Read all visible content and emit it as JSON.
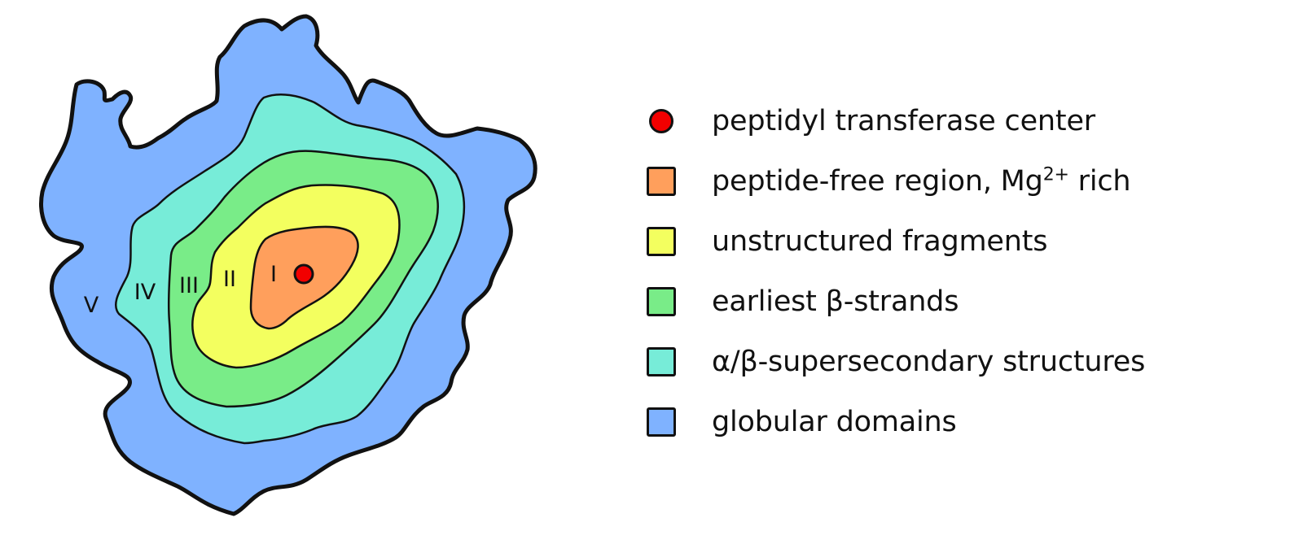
{
  "zones": [
    {
      "numeral": "V",
      "color": "#7fb2ff"
    },
    {
      "numeral": "IV",
      "color": "#77ecd8"
    },
    {
      "numeral": "III",
      "color": "#79ec88"
    },
    {
      "numeral": "II",
      "color": "#f3ff5f"
    },
    {
      "numeral": "I",
      "color": "#ff9f5c"
    }
  ],
  "center_marker_color": "#f20000",
  "legend": {
    "items": [
      {
        "text": "peptidyl transferase center",
        "color": "#f20000",
        "shape": "dot"
      },
      {
        "text": "peptide-free region, Mg",
        "superscript": "2+",
        "text_after": " rich",
        "color": "#ff9f5c",
        "shape": "square"
      },
      {
        "text": "unstructured fragments",
        "color": "#f3ff5f",
        "shape": "square"
      },
      {
        "text": "earliest β-strands",
        "color": "#79ec88",
        "shape": "square"
      },
      {
        "text": "α/β-supersecondary structures",
        "color": "#77ecd8",
        "shape": "square"
      },
      {
        "text": "globular domains",
        "color": "#7fb2ff",
        "shape": "square"
      }
    ]
  }
}
